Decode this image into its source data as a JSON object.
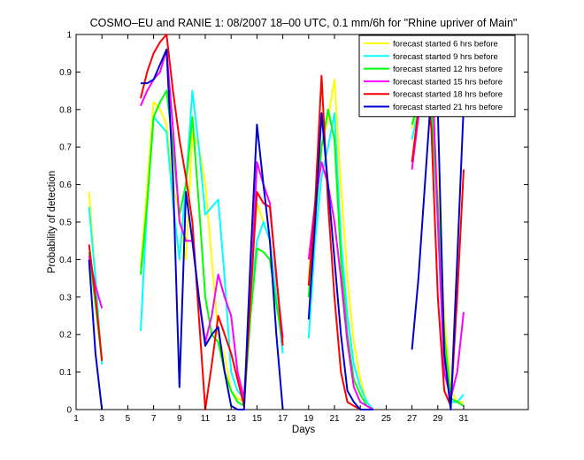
{
  "chart_data": {
    "type": "line",
    "title": "COSMO–EU and RANIE 1: 08/2007 18–00 UTC, 0.1 mm/6h for \"Rhine upriver of Main\"",
    "xlabel": "Days",
    "ylabel": "Probability of detection",
    "xlim": [
      1,
      36
    ],
    "ylim": [
      0,
      1
    ],
    "xticks": [
      "1",
      "3",
      "5",
      "7",
      "9",
      "11",
      "13",
      "15",
      "17",
      "19",
      "21",
      "23",
      "25",
      "27",
      "29",
      "31"
    ],
    "xtick_values": [
      1,
      3,
      5,
      7,
      9,
      11,
      13,
      15,
      17,
      19,
      21,
      23,
      25,
      27,
      29,
      31
    ],
    "yticks": [
      "0",
      "0.1",
      "0.2",
      "0.3",
      "0.4",
      "0.5",
      "0.6",
      "0.7",
      "0.8",
      "0.9",
      "1"
    ],
    "ytick_values": [
      0,
      0.1,
      0.2,
      0.3,
      0.4,
      0.5,
      0.6,
      0.7,
      0.8,
      0.9,
      1
    ],
    "grid": false,
    "legend_position": "top-right",
    "x_step": 0.5,
    "series": [
      {
        "name": "forecast started 6 hrs before",
        "color": "#ffff00",
        "segments": [
          {
            "x": [
              2,
              2.5,
              3
            ],
            "y": [
              0.58,
              0.35,
              0.13
            ]
          },
          {
            "x": [
              6,
              6.5,
              7,
              7.5,
              8,
              8.5,
              9,
              9.5,
              10,
              10.5,
              11,
              11.5,
              12,
              12.5,
              13,
              13.5,
              14,
              14.5,
              15,
              15.5,
              16,
              16.5,
              17
            ],
            "y": [
              0.38,
              0.6,
              0.82,
              0.8,
              0.76,
              0.6,
              0.52,
              0.4,
              0.74,
              0.7,
              0.6,
              0.4,
              0.2,
              0.14,
              0.05,
              0.03,
              0.02,
              0.35,
              0.55,
              0.5,
              0.45,
              0.3,
              0.18
            ]
          },
          {
            "x": [
              19,
              19.5,
              20,
              20.5,
              21,
              21.5,
              22,
              22.5,
              23,
              23.5,
              24
            ],
            "y": [
              0.35,
              0.55,
              0.7,
              0.78,
              0.88,
              0.6,
              0.35,
              0.18,
              0.08,
              0.02,
              0
            ]
          },
          {
            "x": [
              27,
              27.5,
              28,
              28.5,
              29,
              29.5,
              30,
              30.5,
              31
            ],
            "y": [
              0.75,
              0.82,
              0.88,
              0.85,
              0.6,
              0.25,
              0.05,
              0.02,
              0.02
            ]
          }
        ]
      },
      {
        "name": "forecast started 9 hrs before",
        "color": "#00ffff",
        "segments": [
          {
            "x": [
              2,
              2.5,
              3
            ],
            "y": [
              0.54,
              0.35,
              0.12
            ]
          },
          {
            "x": [
              6,
              6.5,
              7,
              7.5,
              8,
              8.5,
              9,
              9.5,
              10,
              10.5,
              11,
              11.5,
              12,
              12.5,
              13,
              13.5,
              14,
              14.5,
              15,
              15.5,
              16,
              16.5,
              17
            ],
            "y": [
              0.21,
              0.55,
              0.78,
              0.76,
              0.74,
              0.55,
              0.4,
              0.6,
              0.85,
              0.7,
              0.52,
              0.54,
              0.56,
              0.35,
              0.1,
              0.05,
              0.03,
              0.3,
              0.45,
              0.5,
              0.45,
              0.3,
              0.15
            ]
          },
          {
            "x": [
              19,
              19.5,
              20,
              20.5,
              21,
              21.5,
              22,
              22.5,
              23,
              23.5,
              24
            ],
            "y": [
              0.19,
              0.45,
              0.62,
              0.7,
              0.79,
              0.45,
              0.25,
              0.12,
              0.06,
              0.02,
              0
            ]
          },
          {
            "x": [
              27,
              27.5,
              28,
              28.5,
              29,
              29.5,
              30,
              30.5,
              31
            ],
            "y": [
              0.72,
              0.8,
              0.85,
              0.8,
              0.5,
              0.15,
              0.02,
              0.02,
              0.04
            ]
          }
        ]
      },
      {
        "name": "forecast started 12 hrs before",
        "color": "#00ff00",
        "segments": [
          {
            "x": [
              2,
              2.5,
              3
            ],
            "y": [
              0.42,
              0.28,
              0.13
            ]
          },
          {
            "x": [
              6,
              6.5,
              7,
              7.5,
              8,
              8.5,
              9,
              9.5,
              10,
              10.5,
              11,
              11.5,
              12,
              12.5,
              13,
              13.5,
              14,
              14.5,
              15,
              15.5,
              16,
              16.5,
              17
            ],
            "y": [
              0.36,
              0.55,
              0.78,
              0.82,
              0.85,
              0.7,
              0.52,
              0.6,
              0.78,
              0.55,
              0.3,
              0.2,
              0.18,
              0.1,
              0.05,
              0.02,
              0.01,
              0.25,
              0.43,
              0.42,
              0.4,
              0.28,
              0.18
            ]
          },
          {
            "x": [
              19,
              19.5,
              20,
              20.5,
              21,
              21.5,
              22,
              22.5,
              23,
              23.5,
              24
            ],
            "y": [
              0.3,
              0.5,
              0.7,
              0.8,
              0.72,
              0.4,
              0.2,
              0.08,
              0.04,
              0.01,
              0
            ]
          },
          {
            "x": [
              27,
              27.5,
              28,
              28.5,
              29,
              29.5,
              30,
              30.5,
              31
            ],
            "y": [
              0.76,
              0.82,
              0.86,
              0.8,
              0.55,
              0.2,
              0.03,
              0.02,
              0.01
            ]
          }
        ]
      },
      {
        "name": "forecast started 15 hrs before",
        "color": "#ff00ff",
        "segments": [
          {
            "x": [
              2,
              2.5,
              3
            ],
            "y": [
              0.41,
              0.33,
              0.27
            ]
          },
          {
            "x": [
              6,
              6.5,
              7,
              7.5,
              8,
              8.5,
              9,
              9.5,
              10,
              10.5,
              11,
              11.5,
              12,
              12.5,
              13,
              13.5,
              14,
              14.5,
              15,
              15.5,
              16,
              16.5,
              17
            ],
            "y": [
              0.81,
              0.85,
              0.88,
              0.9,
              0.96,
              0.75,
              0.5,
              0.45,
              0.45,
              0.3,
              0.18,
              0.25,
              0.36,
              0.3,
              0.25,
              0.1,
              0.03,
              0.3,
              0.66,
              0.6,
              0.55,
              0.35,
              0.19
            ]
          },
          {
            "x": [
              19,
              19.5,
              20,
              20.5,
              21,
              21.5,
              22,
              22.5,
              23,
              23.5,
              24
            ],
            "y": [
              0.4,
              0.55,
              0.66,
              0.6,
              0.5,
              0.35,
              0.18,
              0.06,
              0.02,
              0.01,
              0
            ]
          },
          {
            "x": [
              27,
              27.5,
              28,
              28.5,
              29,
              29.5,
              30,
              30.5,
              31
            ],
            "y": [
              0.64,
              0.78,
              0.87,
              0.96,
              0.5,
              0.1,
              0.03,
              0.1,
              0.26
            ]
          }
        ]
      },
      {
        "name": "forecast started 18 hrs before",
        "color": "#ff0000",
        "segments": [
          {
            "x": [
              2,
              2.5,
              3
            ],
            "y": [
              0.44,
              0.3,
              0.13
            ]
          },
          {
            "x": [
              6,
              6.5,
              7,
              7.5,
              8,
              8.5,
              9,
              9.5,
              10,
              10.5,
              11,
              11.5,
              12,
              12.5,
              13,
              13.5,
              14,
              14.5,
              15,
              15.5,
              16,
              16.5,
              17
            ],
            "y": [
              0.83,
              0.9,
              0.95,
              0.98,
              1,
              0.85,
              0.72,
              0.62,
              0.5,
              0.25,
              0.0,
              0.12,
              0.25,
              0.2,
              0.15,
              0.08,
              0.01,
              0.3,
              0.58,
              0.55,
              0.54,
              0.36,
              0.17
            ]
          },
          {
            "x": [
              19,
              19.5,
              20,
              20.5,
              21,
              21.5,
              22,
              22.5,
              23,
              23.5,
              24
            ],
            "y": [
              0.33,
              0.55,
              0.89,
              0.55,
              0.3,
              0.1,
              0.02,
              0.01,
              0,
              0,
              0
            ]
          },
          {
            "x": [
              27,
              27.5,
              28,
              28.5,
              29,
              29.5,
              30,
              30.5,
              31
            ],
            "y": [
              0.66,
              0.8,
              0.9,
              0.75,
              0.3,
              0.05,
              0.01,
              0.3,
              0.64
            ]
          }
        ]
      },
      {
        "name": "forecast started 21 hrs before",
        "color": "#0000cc",
        "segments": [
          {
            "x": [
              2,
              2.5,
              3
            ],
            "y": [
              0.4,
              0.15,
              0.0
            ]
          },
          {
            "x": [
              6,
              6.5,
              7,
              7.5,
              8,
              8.5,
              9,
              9.5,
              10,
              10.5,
              11,
              11.5,
              12,
              12.5,
              13,
              13.5,
              14,
              14.5,
              15,
              15.5,
              16,
              16.5,
              17
            ],
            "y": [
              0.87,
              0.87,
              0.88,
              0.92,
              0.96,
              0.62,
              0.06,
              0.58,
              0.45,
              0.3,
              0.17,
              0.2,
              0.22,
              0.1,
              0.01,
              0.0,
              0.0,
              0.4,
              0.76,
              0.6,
              0.45,
              0.2,
              0.0
            ]
          },
          {
            "x": [
              19,
              19.5,
              20,
              20.5,
              21,
              21.5,
              22,
              22.5,
              23,
              23.5,
              24
            ],
            "y": [
              0.24,
              0.5,
              0.79,
              0.6,
              0.4,
              0.2,
              0.05,
              0.02,
              0,
              0,
              0
            ]
          },
          {
            "x": [
              27,
              27.5,
              28,
              28.5,
              29,
              29.5,
              30,
              30.5,
              31
            ],
            "y": [
              0.16,
              0.35,
              0.6,
              0.85,
              0.8,
              0.15,
              0.0,
              0.4,
              0.81
            ]
          }
        ]
      }
    ]
  }
}
